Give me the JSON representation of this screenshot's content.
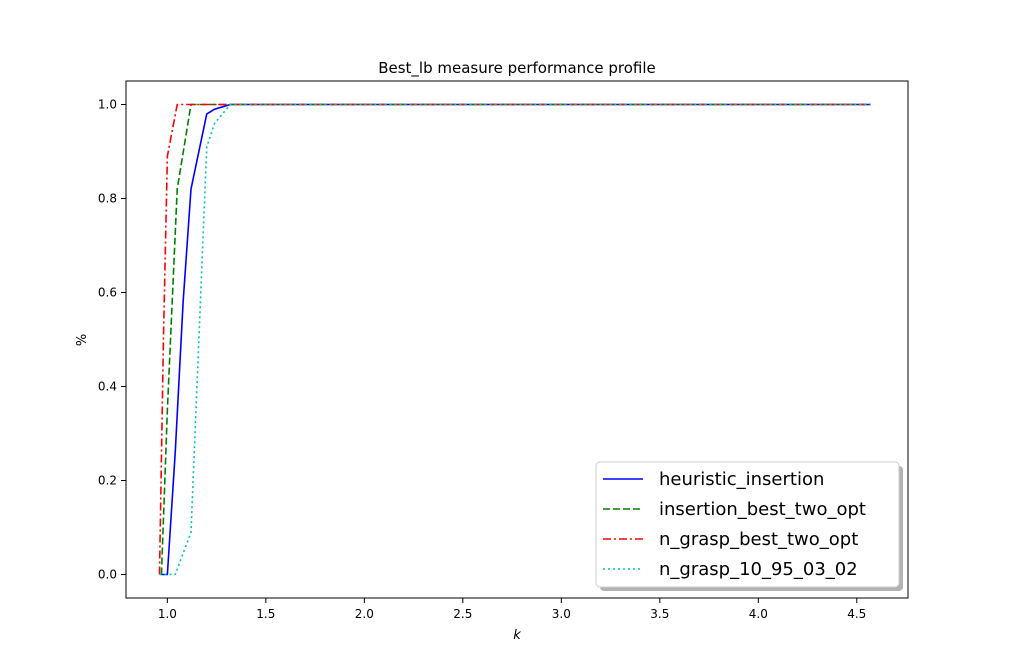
{
  "chart_data": {
    "type": "line",
    "title": "Best_lb measure performance profile",
    "xlabel": "k",
    "ylabel": "%",
    "xlim": [
      0.79,
      4.76
    ],
    "ylim": [
      -0.05,
      1.05
    ],
    "xticks": [
      "1.0",
      "1.5",
      "2.0",
      "2.5",
      "3.0",
      "3.5",
      "4.0",
      "4.5"
    ],
    "yticks": [
      "0.0",
      "0.2",
      "0.4",
      "0.6",
      "0.8",
      "1.0"
    ],
    "grid": false,
    "legend_position": "lower-right",
    "series": [
      {
        "name": "heuristic_insertion",
        "color": "#0000ff",
        "style": "solid",
        "x": [
          0.97,
          1.0,
          1.04,
          1.08,
          1.12,
          1.2,
          1.24,
          1.32,
          4.57
        ],
        "y": [
          0.0,
          0.0,
          0.26,
          0.58,
          0.82,
          0.98,
          0.99,
          1.0,
          1.0
        ]
      },
      {
        "name": "insertion_best_two_opt",
        "color": "#008000",
        "style": "dashed",
        "x": [
          0.97,
          1.0,
          1.05,
          1.12,
          4.57
        ],
        "y": [
          0.0,
          0.35,
          0.82,
          1.0,
          1.0
        ]
      },
      {
        "name": "n_grasp_best_two_opt",
        "color": "#ff0000",
        "style": "dashdot",
        "x": [
          0.96,
          0.98,
          1.0,
          1.05,
          4.57
        ],
        "y": [
          0.0,
          0.5,
          0.89,
          1.0,
          1.0
        ]
      },
      {
        "name": "n_grasp_10_95_03_02",
        "color": "#00bfbf",
        "style": "dotted",
        "x": [
          0.96,
          1.04,
          1.12,
          1.2,
          1.24,
          1.32,
          4.57
        ],
        "y": [
          0.0,
          0.0,
          0.09,
          0.91,
          0.96,
          1.0,
          1.0
        ]
      }
    ]
  }
}
